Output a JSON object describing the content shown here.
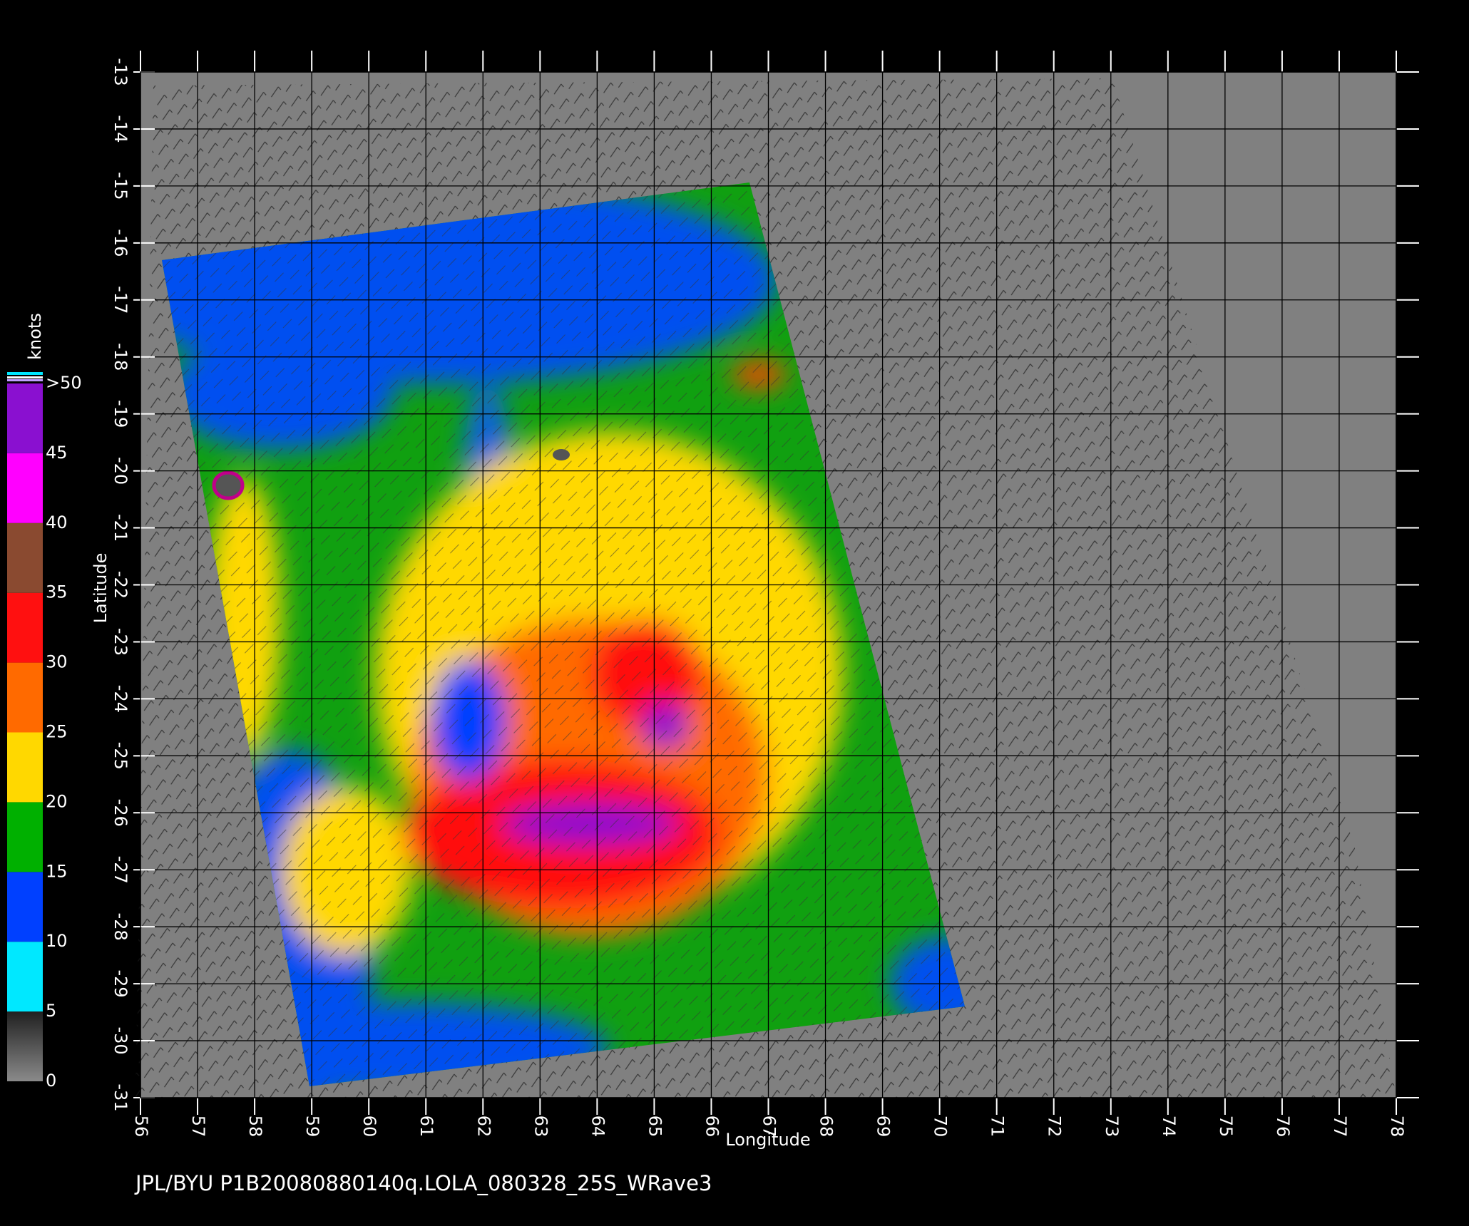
{
  "chart_data": {
    "type": "map",
    "xlabel": "Longitude",
    "ylabel": "Latitude",
    "xlim": [
      56,
      78
    ],
    "ylim": [
      -31,
      -13
    ],
    "xticks": [
      56,
      57,
      58,
      59,
      60,
      61,
      62,
      63,
      64,
      65,
      66,
      67,
      68,
      69,
      70,
      71,
      72,
      73,
      74,
      75,
      76,
      77,
      78
    ],
    "yticks": [
      -13,
      -14,
      -15,
      -16,
      -17,
      -18,
      -19,
      -20,
      -21,
      -22,
      -23,
      -24,
      -25,
      -26,
      -27,
      -28,
      -29,
      -30,
      -31
    ],
    "grid": true,
    "colorbar": {
      "title": "knots",
      "lim": [
        0,
        50
      ],
      "ticks": [
        0,
        5,
        10,
        15,
        20,
        25,
        30,
        35,
        40,
        45,
        {
          "value": 50,
          "label": ">50"
        }
      ],
      "colors": [
        "#5a5a5a",
        "#00e8ff",
        "#0040ff",
        "#00b000",
        "#ffd800",
        "#ff6a00",
        "#ff1010",
        "#8a4a30",
        "#ff00ff",
        "#8a10d0"
      ]
    }
  },
  "caption": "JPL/BYU  P1B20080880140q.LOLA_080328_25S_WRave3"
}
